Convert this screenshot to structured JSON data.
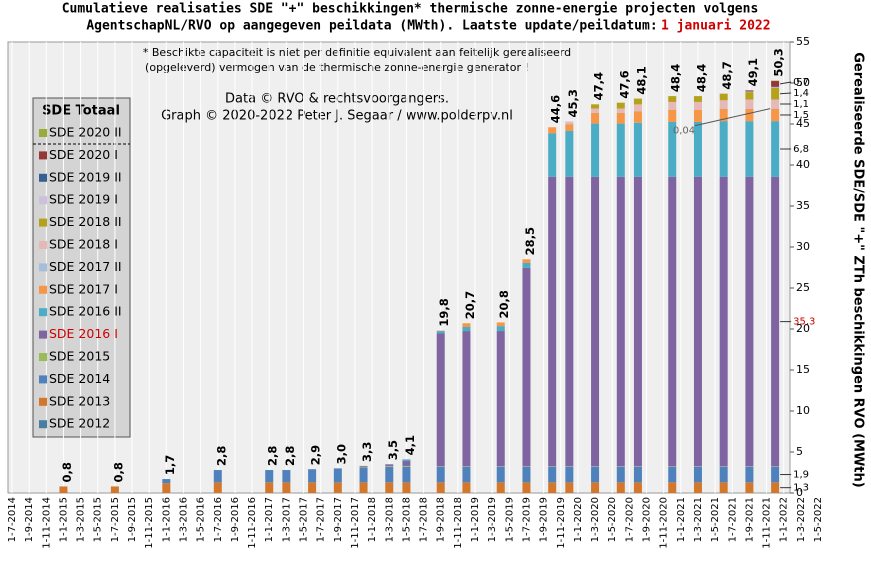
{
  "chart_data": {
    "type": "stacked-bar",
    "title": [
      "Cumulatieve realisaties SDE \"+\" beschikkingen*  thermische zonne-energie projecten volgens",
      "AgentschapNL/RVO  op aangegeven peildata (MWth).  Laatste update/peildatum:"
    ],
    "title_date": "1 januari 2022",
    "note": [
      "* Beschikte capaciteit is niet per definitie equivalent aan feitelijk gerealiseerd",
      "(opgeleverd) vermogen van de thermische zonne-energie generator !"
    ],
    "credit": [
      "Data © RVO & rechtsvoorgangers.",
      "Graph  © 2020-2022  Peter J. Segaar / www.polderpv.nl"
    ],
    "y_label": "Gerealiseerde SDE/SDE \"+\" ZTh beschikkingen RVO (MWth)",
    "legend_title": "SDE Totaal",
    "ylim": [
      0,
      55
    ],
    "yticks": [
      0,
      5,
      10,
      15,
      20,
      25,
      30,
      35,
      40,
      45,
      50,
      55
    ],
    "xticks": [
      "1-7-2014",
      "1-9-2014",
      "1-11-2014",
      "1-1-2015",
      "1-3-2015",
      "1-5-2015",
      "1-7-2015",
      "1-9-2015",
      "1-11-2015",
      "1-1-2016",
      "1-3-2016",
      "1-5-2016",
      "1-7-2016",
      "1-9-2016",
      "1-11-2016",
      "1-1-2017",
      "1-3-2017",
      "1-5-2017",
      "1-7-2017",
      "1-9-2017",
      "1-11-2017",
      "1-1-2018",
      "1-3-2018",
      "1-5-2018",
      "1-7-2018",
      "1-9-2018",
      "1-11-2018",
      "1-1-2019",
      "1-3-2019",
      "1-5-2019",
      "1-7-2019",
      "1-9-2019",
      "1-11-2019",
      "1-1-2020",
      "1-3-2020",
      "1-5-2020",
      "1-7-2020",
      "1-9-2020",
      "1-11-2020",
      "1-1-2021",
      "1-3-2021",
      "1-5-2021",
      "1-7-2021",
      "1-9-2021",
      "1-11-2021",
      "1-1-2022",
      "1-3-2022",
      "1-5-2022"
    ],
    "x": [
      "1-1-2015",
      "1-7-2015",
      "1-1-2016",
      "1-7-2016",
      "1-1-2017",
      "1-3-2017",
      "1-6-2017",
      "1-9-2017",
      "1-12-2017",
      "1-3-2018",
      "1-5-2018",
      "1-9-2018",
      "1-12-2018",
      "1-4-2019",
      "1-7-2019",
      "1-10-2019",
      "1-12-2019",
      "1-3-2020",
      "1-6-2020",
      "1-8-2020",
      "1-12-2020",
      "1-3-2021",
      "1-6-2021",
      "1-9-2021",
      "1-12-2021"
    ],
    "total_labels": [
      "0,8",
      "0,8",
      "1,7",
      "2,8",
      "2,8",
      "2,8",
      "2,9",
      "3,0",
      "3,3",
      "3,5",
      "4,1",
      "19,8",
      "20,7",
      "20,8",
      "28,5",
      "44,6",
      "45,3",
      "47,4",
      "47,6",
      "48,1",
      "48,4",
      "48,4",
      "48,7",
      "49,1",
      "50,3"
    ],
    "grid": true,
    "series": [
      {
        "name": "SDE 2012",
        "color": "#4a7ea0",
        "values": [
          0,
          0,
          0,
          0,
          0,
          0,
          0,
          0,
          0,
          0,
          0,
          0,
          0,
          0,
          0,
          0,
          0,
          0,
          0,
          0,
          0,
          0,
          0,
          0,
          0
        ]
      },
      {
        "name": "SDE 2013",
        "color": "#d2772b",
        "values": [
          0.8,
          0.8,
          1.2,
          1.3,
          1.3,
          1.3,
          1.3,
          1.3,
          1.3,
          1.3,
          1.3,
          1.3,
          1.3,
          1.3,
          1.3,
          1.3,
          1.3,
          1.3,
          1.3,
          1.3,
          1.3,
          1.3,
          1.3,
          1.3,
          1.3
        ],
        "value_labels": [
          null,
          null,
          null,
          null,
          null,
          null,
          null,
          null,
          null,
          null,
          null,
          null,
          null,
          null,
          null,
          null,
          null,
          null,
          null,
          null,
          null,
          null,
          null,
          null,
          "1,3"
        ]
      },
      {
        "name": "SDE 2014",
        "color": "#4f81bd",
        "values": [
          0,
          0,
          0.5,
          1.5,
          1.5,
          1.5,
          1.6,
          1.7,
          1.8,
          1.9,
          1.9,
          1.9,
          1.9,
          1.9,
          1.9,
          1.9,
          1.9,
          1.9,
          1.9,
          1.9,
          1.9,
          1.9,
          1.9,
          1.9,
          1.9
        ],
        "value_labels": [
          null,
          null,
          null,
          null,
          null,
          null,
          null,
          null,
          null,
          null,
          null,
          null,
          null,
          null,
          null,
          null,
          null,
          null,
          null,
          null,
          null,
          null,
          null,
          null,
          "1,9"
        ]
      },
      {
        "name": "SDE 2015",
        "color": "#9bbb59",
        "values": [
          0,
          0,
          0,
          0,
          0,
          0,
          0,
          0,
          0.1,
          0.1,
          0.1,
          0.05,
          0.05,
          0.05,
          0.05,
          0.05,
          0.05,
          0.05,
          0.05,
          0.05,
          0.05,
          0.05,
          0.05,
          0.05,
          0.05
        ]
      },
      {
        "name": "SDE 2016 I",
        "color": "#8064a2",
        "label_color": "#d00000",
        "values": [
          0,
          0,
          0,
          0,
          0,
          0,
          0,
          0,
          0.1,
          0.2,
          0.6,
          16.2,
          16.5,
          16.5,
          24.2,
          35.3,
          35.3,
          35.3,
          35.3,
          35.3,
          35.3,
          35.3,
          35.3,
          35.3,
          35.3
        ],
        "value_labels": [
          null,
          null,
          null,
          null,
          null,
          null,
          null,
          null,
          null,
          null,
          null,
          null,
          null,
          null,
          null,
          null,
          null,
          null,
          null,
          null,
          null,
          null,
          null,
          null,
          "35,3"
        ]
      },
      {
        "name": "SDE 2016 II",
        "color": "#4bacc6",
        "values": [
          0,
          0,
          0,
          0,
          0,
          0,
          0,
          0,
          0,
          0,
          0.2,
          0.3,
          0.5,
          0.6,
          0.6,
          5.3,
          5.6,
          6.5,
          6.5,
          6.6,
          6.7,
          6.7,
          6.8,
          6.8,
          6.8
        ],
        "value_labels": [
          null,
          null,
          null,
          null,
          null,
          null,
          null,
          null,
          null,
          null,
          null,
          null,
          null,
          null,
          null,
          null,
          null,
          null,
          null,
          null,
          null,
          null,
          null,
          null,
          "6,8"
        ]
      },
      {
        "name": "SDE 2017 I",
        "color": "#f79646",
        "values": [
          0,
          0,
          0,
          0,
          0,
          0,
          0,
          0,
          0,
          0,
          0,
          0.05,
          0.45,
          0.45,
          0.45,
          0.75,
          0.8,
          1.3,
          1.3,
          1.4,
          1.5,
          1.5,
          1.5,
          1.5,
          1.5
        ],
        "value_labels": [
          null,
          null,
          null,
          null,
          null,
          null,
          null,
          null,
          null,
          null,
          null,
          null,
          null,
          null,
          null,
          null,
          null,
          null,
          null,
          null,
          null,
          null,
          null,
          null,
          "1,5"
        ]
      },
      {
        "name": "SDE 2017 II",
        "color": "#a6bddb",
        "values": [
          0,
          0,
          0,
          0,
          0,
          0,
          0,
          0,
          0,
          0,
          0,
          0,
          0,
          0,
          0,
          0,
          0.05,
          0.04,
          0.04,
          0.04,
          0.04,
          0.04,
          0.04,
          0.04,
          0.04
        ],
        "value_labels": [
          null,
          null,
          null,
          null,
          null,
          null,
          null,
          null,
          null,
          null,
          null,
          null,
          null,
          null,
          null,
          null,
          null,
          null,
          null,
          null,
          null,
          null,
          null,
          null,
          "0,04"
        ]
      },
      {
        "name": "SDE 2018 I",
        "color": "#e6b9b8",
        "values": [
          0,
          0,
          0,
          0,
          0,
          0,
          0,
          0,
          0,
          0,
          0,
          0,
          0,
          0,
          0,
          0,
          0.3,
          0.5,
          0.5,
          0.8,
          0.9,
          0.9,
          1.0,
          1.1,
          1.1
        ],
        "value_labels": [
          null,
          null,
          null,
          null,
          null,
          null,
          null,
          null,
          null,
          null,
          null,
          null,
          null,
          null,
          null,
          null,
          null,
          null,
          null,
          null,
          null,
          null,
          null,
          null,
          "1,1"
        ]
      },
      {
        "name": "SDE 2018 II",
        "color": "#b3a21a",
        "values": [
          0,
          0,
          0,
          0,
          0,
          0,
          0,
          0,
          0,
          0,
          0,
          0,
          0,
          0,
          0,
          0,
          0,
          0.51,
          0.71,
          0.71,
          0.71,
          0.71,
          0.81,
          0.9,
          1.4
        ],
        "value_labels": [
          null,
          null,
          null,
          null,
          null,
          null,
          null,
          null,
          null,
          null,
          null,
          null,
          null,
          null,
          null,
          null,
          null,
          null,
          null,
          null,
          null,
          null,
          null,
          null,
          "1,4"
        ]
      },
      {
        "name": "SDE 2019 I",
        "color": "#ccc0da",
        "values": [
          0,
          0,
          0,
          0,
          0,
          0,
          0,
          0,
          0,
          0,
          0,
          0,
          0,
          0,
          0,
          0,
          0,
          0,
          0,
          0,
          0,
          0,
          0,
          0.05,
          0.1
        ]
      },
      {
        "name": "SDE 2019 II",
        "color": "#376092",
        "values": [
          0,
          0,
          0,
          0,
          0,
          0,
          0,
          0,
          0,
          0,
          0,
          0,
          0,
          0,
          0,
          0,
          0,
          0,
          0,
          0,
          0,
          0,
          0,
          0.05,
          0.05
        ]
      },
      {
        "name": "SDE 2020 I",
        "color": "#953735",
        "values": [
          0,
          0,
          0,
          0,
          0,
          0,
          0,
          0,
          0,
          0,
          0,
          0,
          0,
          0,
          0,
          0,
          0,
          0,
          0,
          0,
          0,
          0,
          0,
          0.11,
          0.7
        ],
        "value_labels": [
          null,
          null,
          null,
          null,
          null,
          null,
          null,
          null,
          null,
          null,
          null,
          null,
          null,
          null,
          null,
          null,
          null,
          null,
          null,
          null,
          null,
          null,
          null,
          null,
          "0,7"
        ]
      },
      {
        "name": "SDE 2020 II",
        "color": "#9aab3a",
        "values": [
          0,
          0,
          0,
          0,
          0,
          0,
          0,
          0,
          0,
          0,
          0,
          0,
          0,
          0,
          0,
          0,
          0,
          0,
          0,
          0,
          0,
          0,
          0,
          0,
          0.05
        ]
      }
    ]
  }
}
